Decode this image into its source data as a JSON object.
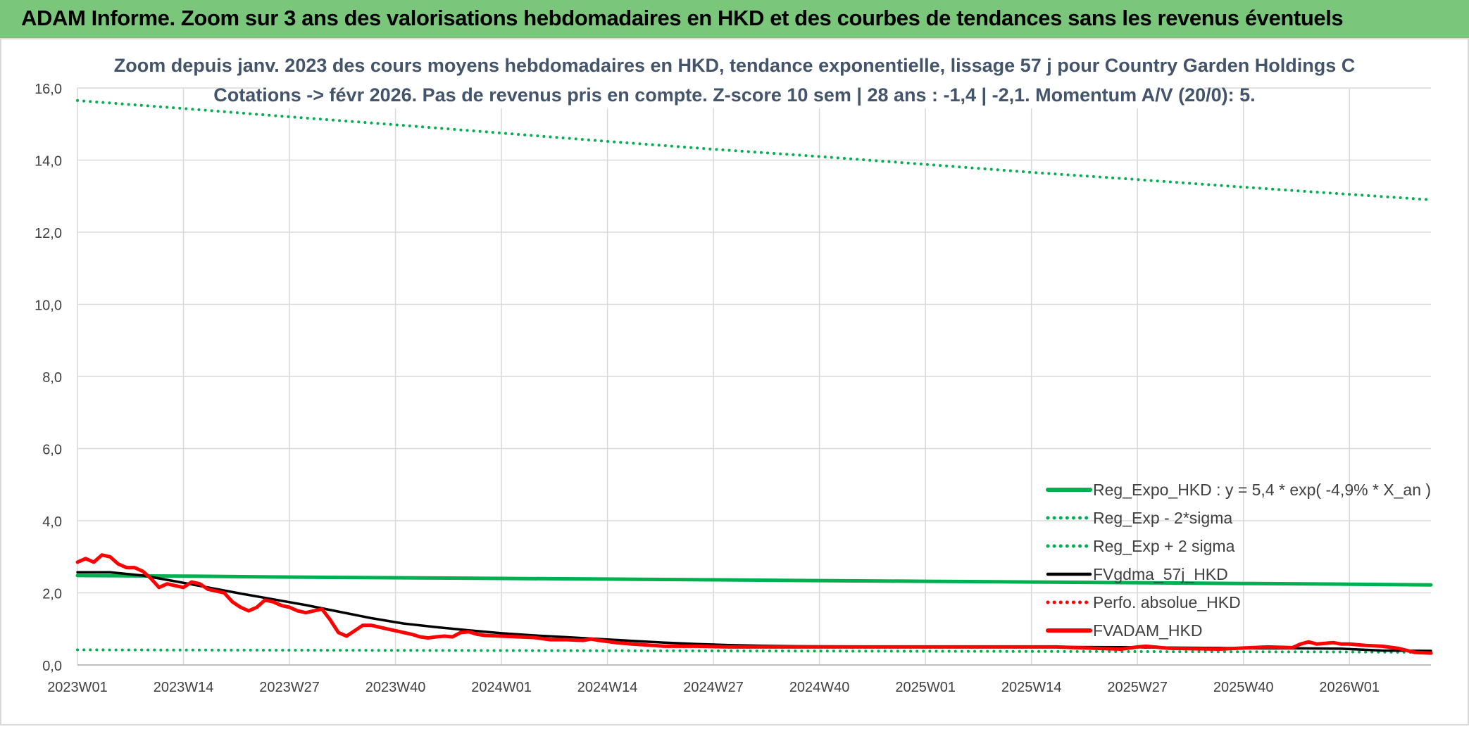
{
  "header": {
    "title": "ADAM Informe. Zoom sur 3 ans des valorisations hebdomadaires en HKD et des courbes de tendances sans les revenus éventuels"
  },
  "colors": {
    "banner": "#7ac77c",
    "reg_expo": "#00b050",
    "fvgdma": "#000000",
    "perfo": "#ff0000",
    "fvadam": "#ff0000",
    "title_text": "#44546a",
    "axis_text": "#404040",
    "grid": "#d9d9d9"
  },
  "chart_data": {
    "type": "line",
    "title": "Zoom depuis janv. 2023 des cours moyens hebdomadaires en HKD, tendance exponentielle, lissage 57 j pour Country Garden Holdings C",
    "subtitle": "Cotations -> févr 2026. Pas de revenus pris en compte. Z-score 10 sem | 28 ans : -1,4 | -2,1. Momentum A/V (20/0): 5.",
    "x_ticks": [
      "2023W01",
      "2023W14",
      "2023W27",
      "2023W40",
      "2024W01",
      "2024W14",
      "2024W27",
      "2024W40",
      "2025W01",
      "2025W14",
      "2025W27",
      "2025W40",
      "2026W01"
    ],
    "y_ticks": [
      "0,0",
      "2,0",
      "4,0",
      "6,0",
      "8,0",
      "10,0",
      "12,0",
      "14,0",
      "16,0"
    ],
    "ylim": [
      0,
      16
    ],
    "grid": true,
    "legend_position": "bottom-right",
    "series": [
      {
        "name": "Reg_Expo_HKD : y = 5,4 * exp( -4,9% *  X_an )",
        "style": "solid-thick",
        "color": "#00b050",
        "points": [
          [
            0,
            2.48
          ],
          [
            15,
            2.46
          ],
          [
            25,
            2.44
          ],
          [
            38,
            2.42
          ],
          [
            52,
            2.4
          ],
          [
            66,
            2.38
          ],
          [
            78,
            2.36
          ],
          [
            91,
            2.34
          ],
          [
            104,
            2.32
          ],
          [
            117,
            2.3
          ],
          [
            130,
            2.28
          ],
          [
            143,
            2.26
          ],
          [
            156,
            2.24
          ],
          [
            166,
            2.22
          ]
        ]
      },
      {
        "name": "Reg_Exp - 2*sigma",
        "style": "dotted",
        "color": "#00b050",
        "points": [
          [
            0,
            0.42
          ],
          [
            52,
            0.4
          ],
          [
            104,
            0.38
          ],
          [
            156,
            0.36
          ],
          [
            166,
            0.35
          ]
        ]
      },
      {
        "name": "Reg_Exp + 2 sigma",
        "style": "dotted",
        "color": "#00b050",
        "points": [
          [
            0,
            15.65
          ],
          [
            13,
            15.43
          ],
          [
            26,
            15.2
          ],
          [
            39,
            14.98
          ],
          [
            52,
            14.75
          ],
          [
            65,
            14.52
          ],
          [
            78,
            14.3
          ],
          [
            91,
            14.1
          ],
          [
            104,
            13.88
          ],
          [
            117,
            13.66
          ],
          [
            130,
            13.46
          ],
          [
            143,
            13.25
          ],
          [
            156,
            13.05
          ],
          [
            166,
            12.9
          ]
        ]
      },
      {
        "name": "FVgdma_57j_HKD",
        "style": "solid",
        "color": "#000000",
        "points": [
          [
            0,
            2.57
          ],
          [
            4,
            2.57
          ],
          [
            8,
            2.48
          ],
          [
            12,
            2.32
          ],
          [
            16,
            2.15
          ],
          [
            20,
            1.98
          ],
          [
            24,
            1.82
          ],
          [
            28,
            1.66
          ],
          [
            32,
            1.48
          ],
          [
            36,
            1.3
          ],
          [
            40,
            1.15
          ],
          [
            44,
            1.05
          ],
          [
            48,
            0.96
          ],
          [
            52,
            0.88
          ],
          [
            56,
            0.82
          ],
          [
            60,
            0.77
          ],
          [
            64,
            0.72
          ],
          [
            68,
            0.67
          ],
          [
            72,
            0.62
          ],
          [
            76,
            0.58
          ],
          [
            80,
            0.55
          ],
          [
            84,
            0.53
          ],
          [
            88,
            0.52
          ],
          [
            100,
            0.51
          ],
          [
            120,
            0.5
          ],
          [
            130,
            0.49
          ],
          [
            140,
            0.47
          ],
          [
            145,
            0.46
          ],
          [
            150,
            0.46
          ],
          [
            155,
            0.45
          ],
          [
            160,
            0.4
          ],
          [
            166,
            0.39
          ]
        ]
      },
      {
        "name": "Perfo. absolue_HKD",
        "style": "dotted",
        "color": "#ff0000",
        "points": []
      },
      {
        "name": "FVADAM_HKD",
        "style": "solid-thick",
        "color": "#ff0000",
        "points": [
          [
            0,
            2.85
          ],
          [
            1,
            2.95
          ],
          [
            2,
            2.85
          ],
          [
            3,
            3.05
          ],
          [
            4,
            3.0
          ],
          [
            5,
            2.8
          ],
          [
            6,
            2.7
          ],
          [
            7,
            2.7
          ],
          [
            8,
            2.6
          ],
          [
            9,
            2.4
          ],
          [
            10,
            2.15
          ],
          [
            11,
            2.25
          ],
          [
            12,
            2.2
          ],
          [
            13,
            2.15
          ],
          [
            14,
            2.3
          ],
          [
            15,
            2.25
          ],
          [
            16,
            2.1
          ],
          [
            17,
            2.05
          ],
          [
            18,
            2.0
          ],
          [
            19,
            1.75
          ],
          [
            20,
            1.6
          ],
          [
            21,
            1.5
          ],
          [
            22,
            1.6
          ],
          [
            23,
            1.8
          ],
          [
            24,
            1.75
          ],
          [
            25,
            1.65
          ],
          [
            26,
            1.6
          ],
          [
            27,
            1.5
          ],
          [
            28,
            1.45
          ],
          [
            29,
            1.5
          ],
          [
            30,
            1.55
          ],
          [
            31,
            1.25
          ],
          [
            32,
            0.9
          ],
          [
            33,
            0.8
          ],
          [
            34,
            0.95
          ],
          [
            35,
            1.1
          ],
          [
            36,
            1.1
          ],
          [
            37,
            1.05
          ],
          [
            38,
            1.0
          ],
          [
            39,
            0.95
          ],
          [
            40,
            0.9
          ],
          [
            41,
            0.85
          ],
          [
            42,
            0.78
          ],
          [
            43,
            0.75
          ],
          [
            44,
            0.78
          ],
          [
            45,
            0.8
          ],
          [
            46,
            0.78
          ],
          [
            47,
            0.9
          ],
          [
            48,
            0.92
          ],
          [
            49,
            0.85
          ],
          [
            50,
            0.82
          ],
          [
            52,
            0.8
          ],
          [
            54,
            0.78
          ],
          [
            56,
            0.76
          ],
          [
            58,
            0.7
          ],
          [
            60,
            0.7
          ],
          [
            62,
            0.68
          ],
          [
            63,
            0.72
          ],
          [
            64,
            0.68
          ],
          [
            66,
            0.62
          ],
          [
            68,
            0.58
          ],
          [
            70,
            0.55
          ],
          [
            72,
            0.52
          ],
          [
            76,
            0.52
          ],
          [
            80,
            0.5
          ],
          [
            100,
            0.5
          ],
          [
            120,
            0.5
          ],
          [
            125,
            0.46
          ],
          [
            128,
            0.44
          ],
          [
            130,
            0.5
          ],
          [
            131,
            0.52
          ],
          [
            132,
            0.5
          ],
          [
            134,
            0.46
          ],
          [
            140,
            0.44
          ],
          [
            144,
            0.48
          ],
          [
            146,
            0.5
          ],
          [
            149,
            0.48
          ],
          [
            150,
            0.58
          ],
          [
            151,
            0.64
          ],
          [
            152,
            0.58
          ],
          [
            153,
            0.6
          ],
          [
            154,
            0.62
          ],
          [
            155,
            0.58
          ],
          [
            156,
            0.58
          ],
          [
            158,
            0.54
          ],
          [
            160,
            0.52
          ],
          [
            162,
            0.46
          ],
          [
            164,
            0.35
          ],
          [
            166,
            0.33
          ]
        ]
      }
    ]
  }
}
